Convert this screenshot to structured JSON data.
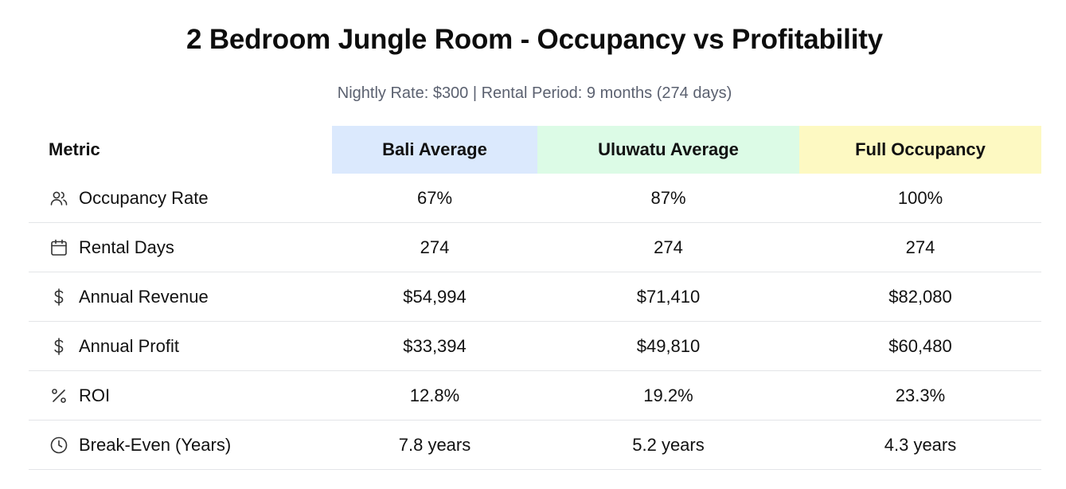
{
  "title": "2 Bedroom Jungle Room - Occupancy vs Profitability",
  "subtitle": "Nightly Rate: $300 | Rental Period: 9 months (274 days)",
  "columns": {
    "metric": "Metric",
    "bali": "Bali Average",
    "uluwatu": "Uluwatu Average",
    "full": "Full Occupancy"
  },
  "column_colors": {
    "bali": "#dbe9fd",
    "uluwatu": "#dcfbe6",
    "full": "#fdf9c2"
  },
  "rows": [
    {
      "icon": "users-icon",
      "metric": "Occupancy Rate",
      "bali": "67%",
      "uluwatu": "87%",
      "full": "100%"
    },
    {
      "icon": "calendar-icon",
      "metric": "Rental Days",
      "bali": "274",
      "uluwatu": "274",
      "full": "274"
    },
    {
      "icon": "dollar-icon",
      "metric": "Annual Revenue",
      "bali": "$54,994",
      "uluwatu": "$71,410",
      "full": "$82,080"
    },
    {
      "icon": "dollar-icon",
      "metric": "Annual Profit",
      "bali": "$33,394",
      "uluwatu": "$49,810",
      "full": "$60,480"
    },
    {
      "icon": "percent-icon",
      "metric": "ROI",
      "bali": "12.8%",
      "uluwatu": "19.2%",
      "full": "23.3%"
    },
    {
      "icon": "clock-icon",
      "metric": "Break-Even (Years)",
      "bali": "7.8 years",
      "uluwatu": "5.2 years",
      "full": "4.3 years"
    }
  ]
}
